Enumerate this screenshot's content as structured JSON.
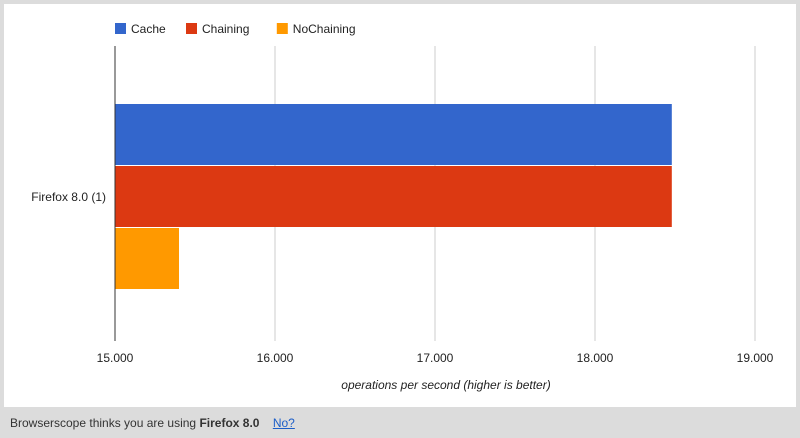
{
  "chart_data": {
    "type": "bar",
    "orientation": "horizontal",
    "categories": [
      "Firefox 8.0 (1)"
    ],
    "series": [
      {
        "name": "Cache",
        "color": "#3366cc",
        "values": [
          18.48
        ]
      },
      {
        "name": "Chaining",
        "color": "#dc3912",
        "values": [
          18.48
        ]
      },
      {
        "name": "NoChaining",
        "color": "#ff9900",
        "values": [
          15.4
        ]
      }
    ],
    "xlabel": "operations per second (higher is better)",
    "ylabel": "",
    "xlim": [
      15.0,
      19.0
    ],
    "xticks": [
      15.0,
      16.0,
      17.0,
      18.0,
      19.0
    ],
    "xtick_labels": [
      "15.000",
      "16.000",
      "17.000",
      "18.000",
      "19.000"
    ],
    "legend_position": "top-left",
    "grid": true
  },
  "footer": {
    "prefix": "Browserscope thinks you are using",
    "browser": "Firefox 8.0",
    "link": "No?"
  }
}
